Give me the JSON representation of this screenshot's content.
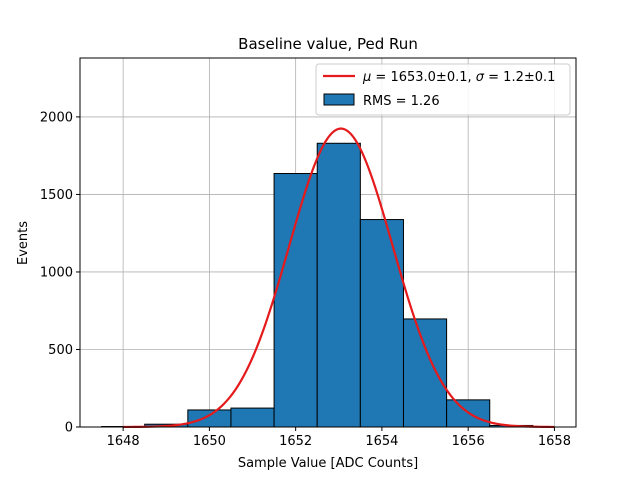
{
  "chart_data": {
    "type": "bar",
    "title": "Baseline value, Ped Run",
    "xlabel": "Sample Value [ADC Counts]",
    "ylabel": "Events",
    "xlim": [
      1647.0,
      1658.5
    ],
    "ylim": [
      0,
      2380
    ],
    "xticks": [
      1648,
      1650,
      1652,
      1654,
      1656,
      1658
    ],
    "xtick_labels": [
      "1648",
      "1650",
      "1652",
      "1654",
      "1656",
      "1658"
    ],
    "yticks": [
      0,
      500,
      1000,
      1500,
      2000
    ],
    "ytick_labels": [
      "0",
      "500",
      "1000",
      "1500",
      "2000"
    ],
    "grid": true,
    "histogram": {
      "name": "RMS = 1.26",
      "color": "#1f77b4",
      "edgecolor": "#000000",
      "bins": [
        {
          "x0": 1647.5,
          "x1": 1648.5,
          "count": 3
        },
        {
          "x0": 1648.5,
          "x1": 1649.5,
          "count": 18
        },
        {
          "x0": 1649.5,
          "x1": 1650.5,
          "count": 110
        },
        {
          "x0": 1650.5,
          "x1": 1651.5,
          "count": 122
        },
        {
          "x0": 1651.5,
          "x1": 1652.5,
          "count": 1635
        },
        {
          "x0": 1652.5,
          "x1": 1653.5,
          "count": 1830
        },
        {
          "x0": 1653.5,
          "x1": 1654.5,
          "count": 1338
        },
        {
          "x0": 1654.5,
          "x1": 1655.5,
          "count": 697
        },
        {
          "x0": 1655.5,
          "x1": 1656.5,
          "count": 175
        },
        {
          "x0": 1656.5,
          "x1": 1657.5,
          "count": 10
        }
      ]
    },
    "fit": {
      "name_parts": [
        "μ",
        " = 1653.0±0.1, ",
        "σ",
        " = 1.2±0.1"
      ],
      "color": "#e41a1c",
      "mu": 1653.05,
      "sigma": 1.2,
      "amplitude": 1925,
      "x_range": [
        1648.0,
        1658.0
      ]
    },
    "legend": {
      "location": "upper right"
    }
  }
}
